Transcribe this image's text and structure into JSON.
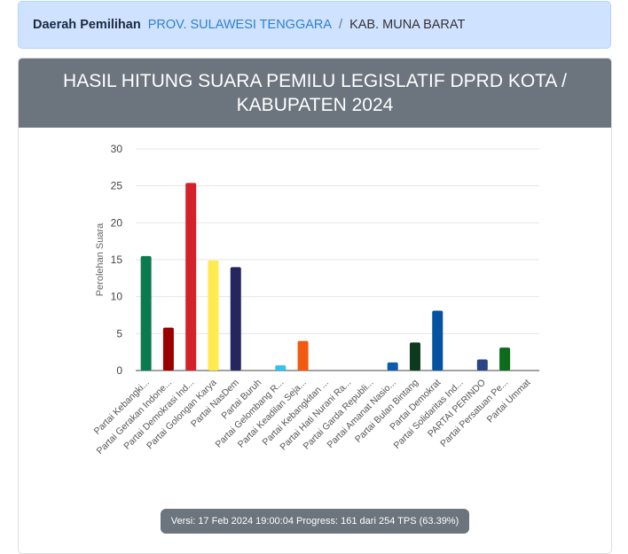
{
  "breadcrumb": {
    "label": "Daerah Pemilihan",
    "province": "PROV. SULAWESI TENGGARA",
    "separator": "/",
    "regency": "KAB. MUNA BARAT"
  },
  "card": {
    "title": "HASIL HITUNG SUARA PEMILU LEGISLATIF DPRD KOTA / KABUPATEN 2024"
  },
  "footer": {
    "version_text": "Versi: 17 Feb 2024 19:00:04 Progress: 161 dari 254 TPS (63.39%)"
  },
  "chart_data": {
    "type": "bar",
    "ylabel": "Perolehan Suara",
    "xlabel": "",
    "ylim": [
      0,
      30
    ],
    "yticks": [
      0,
      5,
      10,
      15,
      20,
      25,
      30
    ],
    "grid": true,
    "categories": [
      "Partai Kebangki...",
      "Partai Gerakan Indone...",
      "Partai Demokrasi Ind...",
      "Partai Golongan Karya",
      "Partai NasDem",
      "Partai Buruh",
      "Partai Gelombang R...",
      "Partai Keadilan Seja...",
      "Partai Kebangkitan ...",
      "Partai Hati Nurani Ra...",
      "Partai Garda Republi...",
      "Partai Amanat Nasio...",
      "Partai Bulan Bintang",
      "Partai Demokrat",
      "Partai Solidaritas Ind...",
      "PARTAI PERINDO",
      "Partai Persatuan Pe...",
      "Partai Ummat"
    ],
    "values": [
      15.5,
      5.8,
      25.4,
      14.9,
      14.0,
      0,
      0.7,
      4.0,
      0,
      0,
      0,
      1.1,
      3.8,
      8.1,
      0,
      1.5,
      3.1,
      0
    ],
    "colors": [
      "#0b7a4f",
      "#9b0000",
      "#d3222a",
      "#ffeb4d",
      "#25255f",
      "#888888",
      "#2ec4ee",
      "#f25a10",
      "#888888",
      "#888888",
      "#888888",
      "#0b5cad",
      "#0b3a1d",
      "#0552a0",
      "#888888",
      "#2a4585",
      "#0d6b1c",
      "#888888"
    ]
  }
}
